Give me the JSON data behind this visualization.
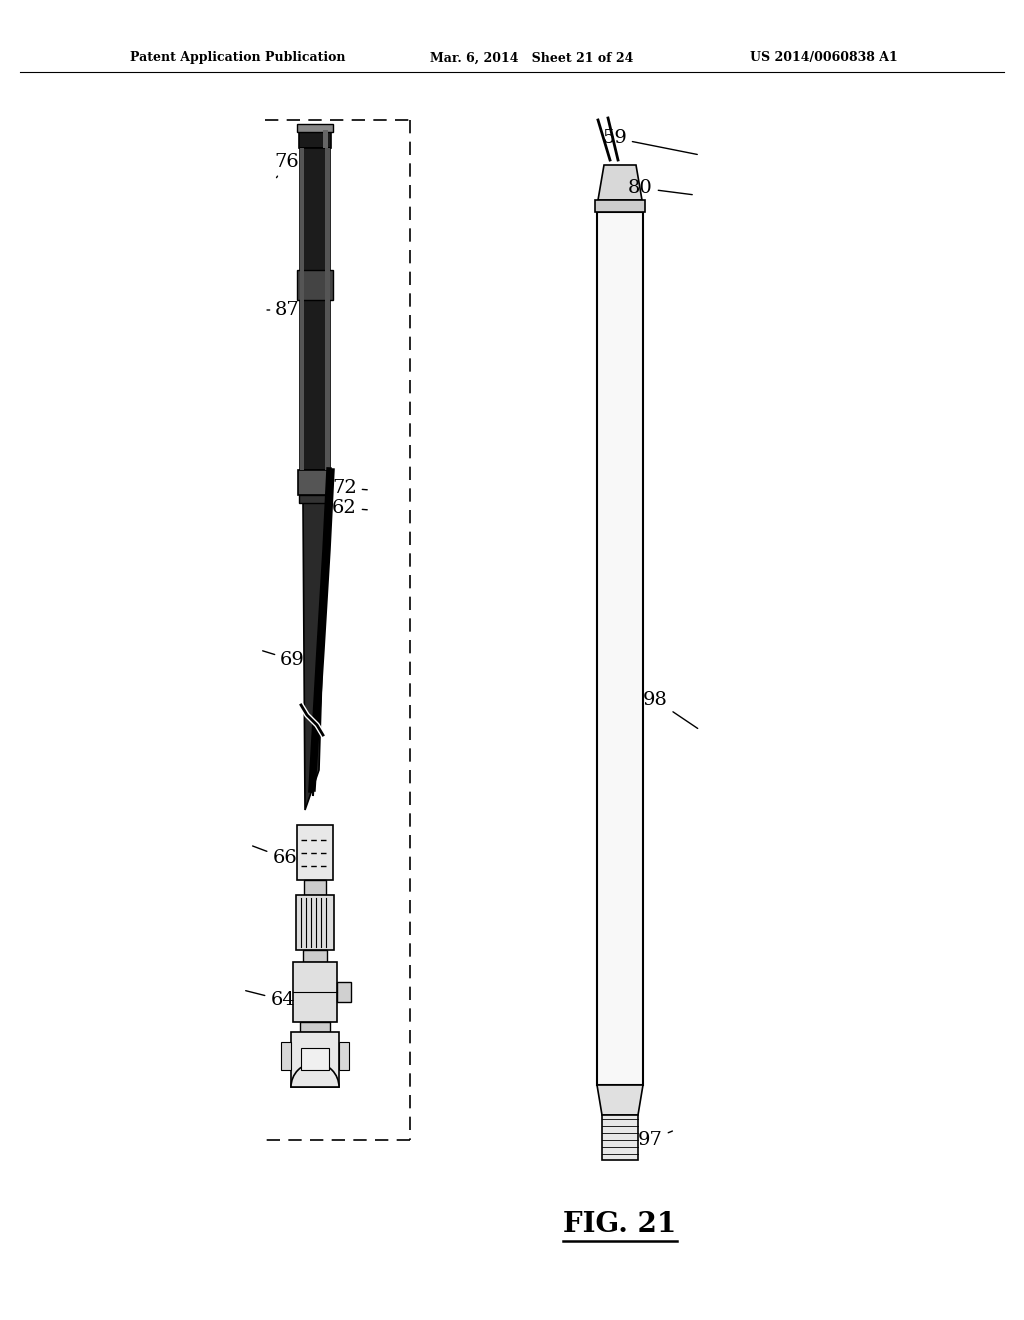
{
  "bg_color": "#ffffff",
  "header_left": "Patent Application Publication",
  "header_mid": "Mar. 6, 2014   Sheet 21 of 24",
  "header_right": "US 2014/0060838 A1",
  "fig_label": "FIG. 21"
}
